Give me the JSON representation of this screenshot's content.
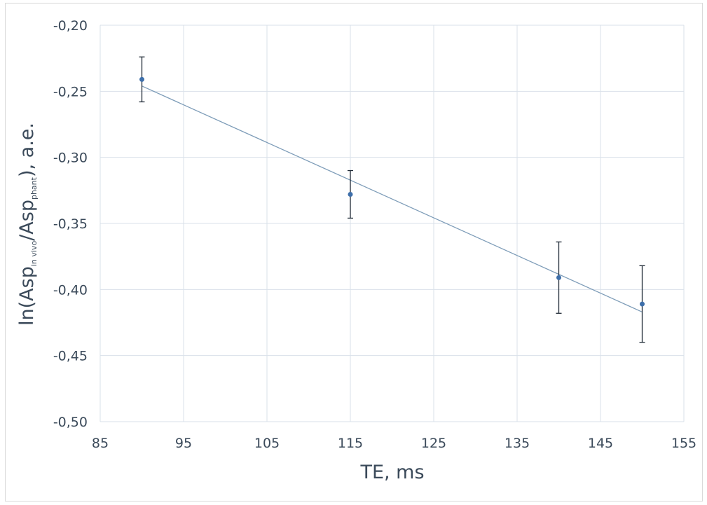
{
  "chart_data": {
    "type": "scatter",
    "xlabel": "TE, ms",
    "ylabel": {
      "prefix": "ln(Asp",
      "sub1": "in vivo",
      "mid": "/Asp",
      "sub2": "phant",
      "suffix": "), a.e."
    },
    "xlim": [
      85,
      155
    ],
    "ylim": [
      -0.5,
      -0.2
    ],
    "xticks": [
      "85",
      "95",
      "105",
      "115",
      "125",
      "135",
      "145",
      "155"
    ],
    "yticks": [
      "-0,20",
      "-0,25",
      "-0,30",
      "-0,35",
      "-0,40",
      "-0,45",
      "-0,50"
    ],
    "grid": true,
    "x": [
      90,
      115,
      140,
      150
    ],
    "y": [
      -0.241,
      -0.328,
      -0.391,
      -0.411
    ],
    "yerr": [
      0.017,
      0.018,
      0.027,
      0.029
    ],
    "trendline": {
      "type": "linear",
      "x": [
        90,
        150
      ],
      "y": [
        -0.246,
        -0.417
      ]
    },
    "colors": {
      "marker": "#3e6faa",
      "trendline": "#7d9cb8",
      "errorbar": "#1f2a36",
      "grid": "#d9e1ea",
      "text": "#3b4a5a"
    }
  }
}
